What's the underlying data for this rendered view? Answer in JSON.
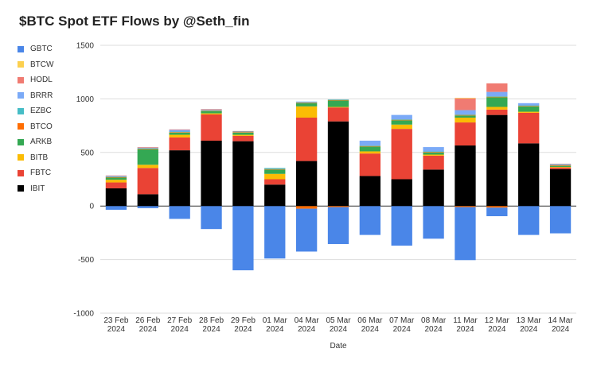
{
  "chart_data": {
    "type": "bar",
    "stacked": true,
    "title": "$BTC Spot ETF Flows by @Seth_fin",
    "xlabel": "Date",
    "ylabel": "",
    "ylim": [
      -1000,
      1500
    ],
    "yticks": [
      -1000,
      -500,
      0,
      500,
      1000,
      1500
    ],
    "grid": true,
    "legend_position": "left",
    "categories": [
      [
        "23 Feb",
        "2024"
      ],
      [
        "26 Feb",
        "2024"
      ],
      [
        "27 Feb",
        "2024"
      ],
      [
        "28 Feb",
        "2024"
      ],
      [
        "29 Feb",
        "2024"
      ],
      [
        "01 Mar",
        "2024"
      ],
      [
        "04 Mar",
        "2024"
      ],
      [
        "05 Mar",
        "2024"
      ],
      [
        "06 Mar",
        "2024"
      ],
      [
        "07 Mar",
        "2024"
      ],
      [
        "08 Mar",
        "2024"
      ],
      [
        "11 Mar",
        "2024"
      ],
      [
        "12 Mar",
        "2024"
      ],
      [
        "13 Mar",
        "2024"
      ],
      [
        "14 Mar",
        "2024"
      ]
    ],
    "series": [
      {
        "name": "IBIT",
        "color": "#000000",
        "values": [
          165,
          110,
          520,
          610,
          605,
          200,
          420,
          790,
          280,
          250,
          340,
          565,
          850,
          585,
          345
        ]
      },
      {
        "name": "FBTC",
        "color": "#ea4335",
        "values": [
          55,
          245,
          120,
          245,
          50,
          50,
          405,
          130,
          210,
          470,
          130,
          215,
          50,
          285,
          15
        ]
      },
      {
        "name": "BITB",
        "color": "#fbbc04",
        "values": [
          25,
          30,
          25,
          10,
          10,
          50,
          105,
          5,
          20,
          40,
          10,
          45,
          25,
          10,
          5
        ]
      },
      {
        "name": "ARKB",
        "color": "#34a853",
        "values": [
          20,
          145,
          20,
          20,
          20,
          40,
          30,
          60,
          45,
          40,
          20,
          20,
          90,
          50,
          10
        ]
      },
      {
        "name": "BTCO",
        "color": "#ff6d01",
        "values": [
          5,
          5,
          5,
          5,
          5,
          5,
          5,
          5,
          5,
          5,
          5,
          5,
          5,
          5,
          5
        ]
      },
      {
        "name": "EZBC",
        "color": "#46bdc6",
        "values": [
          5,
          5,
          5,
          5,
          5,
          10,
          5,
          5,
          5,
          5,
          5,
          5,
          5,
          5,
          5
        ]
      },
      {
        "name": "BRRR",
        "color": "#7baaf7",
        "values": [
          5,
          5,
          15,
          5,
          0,
          0,
          5,
          0,
          45,
          40,
          40,
          40,
          40,
          20,
          5
        ]
      },
      {
        "name": "HODL",
        "color": "#f07b72",
        "values": [
          5,
          5,
          5,
          5,
          5,
          0,
          0,
          0,
          0,
          0,
          0,
          110,
          80,
          0,
          5
        ]
      },
      {
        "name": "BTCW",
        "color": "#fcd04f",
        "values": [
          0,
          0,
          0,
          0,
          0,
          0,
          0,
          0,
          0,
          0,
          0,
          5,
          0,
          0,
          0
        ]
      },
      {
        "name": "GBTC",
        "color": "#4a86e8",
        "values": [
          -35,
          -20,
          -120,
          -215,
          -600,
          -490,
          -400,
          -345,
          -270,
          -370,
          -305,
          -495,
          -80,
          -270,
          -255
        ]
      }
    ],
    "negative_stack": {
      "BTCO": [
        0,
        0,
        0,
        0,
        0,
        0,
        -25,
        -10,
        0,
        0,
        0,
        -10,
        -15,
        0,
        0
      ]
    }
  }
}
